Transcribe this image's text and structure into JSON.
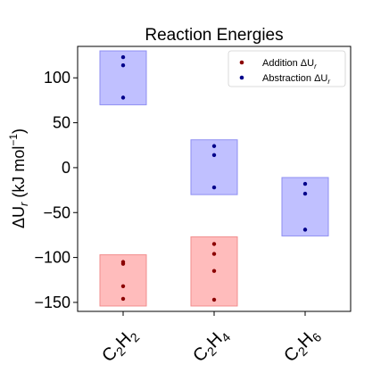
{
  "chart_data": {
    "type": "scatter",
    "title": "Reaction Energies",
    "ylabel_main": "ΔU",
    "ylabel_sub": "r",
    "ylabel_units": " (kJ mol",
    "ylabel_units_sup": "−1",
    "ylabel_units_end": ")",
    "ylim": [
      -160,
      135
    ],
    "yticks": [
      100,
      50,
      0,
      -50,
      -100,
      -150
    ],
    "ytick_labels": [
      "100",
      "50",
      "0",
      "−50",
      "−100",
      "−150"
    ],
    "categories": [
      {
        "main": "C",
        "sub1": "2",
        "mid": "H",
        "sub2": "2"
      },
      {
        "main": "C",
        "sub1": "2",
        "mid": "H",
        "sub2": "4"
      },
      {
        "main": "C",
        "sub1": "2",
        "mid": "H",
        "sub2": "6"
      }
    ],
    "legend_position": "top-right",
    "grid": false,
    "series": [
      {
        "name": "Addition ΔU",
        "name_sub": "r",
        "color": "#8b0000",
        "box_fill": "#ffbcbc",
        "box_edge": "#f28e8e",
        "boxes": [
          {
            "category": 0,
            "low": -154,
            "high": -97
          },
          {
            "category": 1,
            "low": -154,
            "high": -77
          }
        ],
        "points": [
          {
            "category": 0,
            "y": -105
          },
          {
            "category": 0,
            "y": -107
          },
          {
            "category": 0,
            "y": -132
          },
          {
            "category": 0,
            "y": -146
          },
          {
            "category": 1,
            "y": -85
          },
          {
            "category": 1,
            "y": -96
          },
          {
            "category": 1,
            "y": -115
          },
          {
            "category": 1,
            "y": -147
          }
        ]
      },
      {
        "name": "Abstraction ΔU",
        "name_sub": "r",
        "color": "#00008b",
        "box_fill": "#c0c0ff",
        "box_edge": "#8e8ef2",
        "boxes": [
          {
            "category": 0,
            "low": 70,
            "high": 130
          },
          {
            "category": 1,
            "low": -30,
            "high": 31
          },
          {
            "category": 2,
            "low": -76,
            "high": -11
          }
        ],
        "points": [
          {
            "category": 0,
            "y": 123
          },
          {
            "category": 0,
            "y": 114
          },
          {
            "category": 0,
            "y": 78
          },
          {
            "category": 1,
            "y": 24
          },
          {
            "category": 1,
            "y": 14
          },
          {
            "category": 1,
            "y": -22
          },
          {
            "category": 2,
            "y": -18
          },
          {
            "category": 2,
            "y": -29
          },
          {
            "category": 2,
            "y": -69
          }
        ]
      }
    ]
  }
}
